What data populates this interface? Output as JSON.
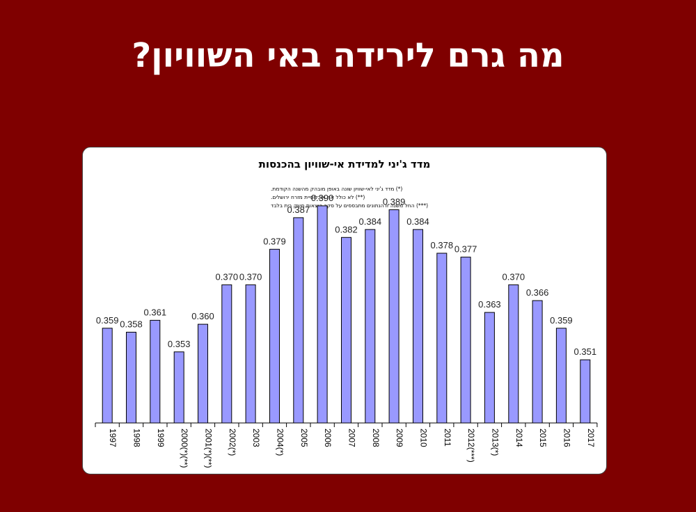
{
  "slide": {
    "title": "מה גרם לירידה באי השוויון?"
  },
  "chart_data": {
    "type": "bar",
    "title": "מדד ג'יני למדידת אי-שוויון בהכנסות",
    "notes": [
      "(*) מדד ג'יני לאי-שוויון שונה באופן מובהק מהשנה הקודמת.",
      "(**) לא כולל את אוכלוסיית מזרח ירושלים.",
      "(***) החל משנה זו הנתונים מתבססים על סקר הוצאות משק בית בלבד"
    ],
    "categories": [
      "1997",
      "1998",
      "1999",
      "2000(*)(**)",
      "2001(*)(**)",
      "2002(*)",
      "2003",
      "2004(*)",
      "2005",
      "2006",
      "2007",
      "2008",
      "2009",
      "2010",
      "2011",
      "2012(***)",
      "2013(*)",
      "2014",
      "2015",
      "2016",
      "2017"
    ],
    "values": [
      0.359,
      0.358,
      0.361,
      0.353,
      0.36,
      0.37,
      0.37,
      0.379,
      0.387,
      0.39,
      0.382,
      0.384,
      0.389,
      0.384,
      0.378,
      0.377,
      0.363,
      0.37,
      0.366,
      0.359,
      0.351
    ],
    "value_labels": [
      "0.359",
      "0.358",
      "0.361",
      "0.353",
      "0.360",
      "0.370",
      "0.370",
      "0.379",
      "0.387",
      "0.390",
      "0.382",
      "0.384",
      "0.389",
      "0.384",
      "0.378",
      "0.377",
      "0.363",
      "0.370",
      "0.366",
      "0.359",
      "0.351"
    ],
    "ylim": [
      0.335,
      0.3935
    ],
    "bar_color": "#9999ff",
    "bar_stroke": "#000000",
    "grid": false,
    "legend": "none"
  }
}
